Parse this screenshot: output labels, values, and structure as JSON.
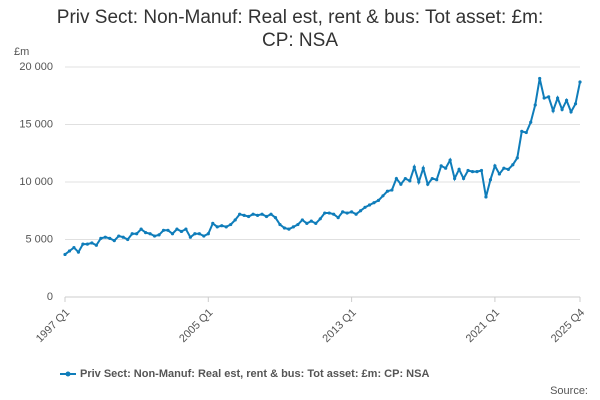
{
  "chart_data": {
    "type": "line",
    "title": "Priv Sect: Non-Manuf: Real est, rent & bus: Tot asset: £m: CP: NSA",
    "y_label": "£m",
    "source": "Source:",
    "categories": [
      "1997 Q1",
      null,
      null,
      null,
      null,
      null,
      null,
      null,
      null,
      null,
      null,
      null,
      null,
      null,
      null,
      null,
      null,
      null,
      null,
      null,
      null,
      null,
      null,
      null,
      null,
      null,
      null,
      null,
      null,
      null,
      null,
      null,
      "2005 Q1",
      null,
      null,
      null,
      null,
      null,
      null,
      null,
      null,
      null,
      null,
      null,
      null,
      null,
      null,
      null,
      null,
      null,
      null,
      null,
      null,
      null,
      null,
      null,
      null,
      null,
      null,
      null,
      null,
      null,
      null,
      null,
      "2013 Q1",
      null,
      null,
      null,
      null,
      null,
      null,
      null,
      null,
      null,
      null,
      null,
      null,
      null,
      null,
      null,
      null,
      null,
      null,
      null,
      null,
      null,
      null,
      null,
      null,
      null,
      null,
      null,
      null,
      null,
      null,
      null,
      "2021 Q1",
      null,
      null,
      null,
      null,
      null,
      null,
      null,
      null,
      null,
      null,
      null,
      null,
      null,
      null,
      null,
      null,
      null,
      null,
      "2025 Q4"
    ],
    "series": [
      {
        "name": "Priv Sect: Non-Manuf: Real est, rent & bus: Tot asset: £m: CP: NSA",
        "color": "#0f7dba",
        "values": [
          3700,
          4000,
          4300,
          3900,
          4600,
          4600,
          4700,
          4500,
          5100,
          5200,
          5100,
          4900,
          5300,
          5200,
          5000,
          5500,
          5500,
          5900,
          5600,
          5500,
          5300,
          5400,
          5800,
          5800,
          5500,
          5900,
          5700,
          5900,
          5200,
          5500,
          5500,
          5300,
          5500,
          6400,
          6100,
          6200,
          6100,
          6300,
          6700,
          7200,
          7100,
          7000,
          7200,
          7100,
          7200,
          7000,
          7200,
          6900,
          6300,
          6000,
          5900,
          6100,
          6300,
          6700,
          6400,
          6600,
          6400,
          6800,
          7300,
          7300,
          7200,
          6900,
          7400,
          7300,
          7400,
          7200,
          7500,
          7800,
          8000,
          8200,
          8400,
          8800,
          9200,
          9300,
          10300,
          9800,
          10300,
          10100,
          11300,
          10000,
          11200,
          9800,
          10300,
          10200,
          11400,
          11200,
          11900,
          10300,
          11100,
          10300,
          11000,
          10900,
          10900,
          11000,
          8700,
          10200,
          11400,
          10700,
          11200,
          11100,
          11500,
          12100,
          14400,
          14300,
          15200,
          16700,
          19000,
          17300,
          17400,
          16200,
          17300,
          16300,
          17100,
          16100,
          16800,
          18700
        ]
      }
    ],
    "ylim": [
      0,
      20000
    ],
    "yticks": [
      0,
      {
        "value": 5000,
        "label": "5 000"
      },
      {
        "value": 10000,
        "label": "10 000"
      },
      {
        "value": 15000,
        "label": "15 000"
      },
      {
        "value": 20000,
        "label": "20 000"
      }
    ],
    "grid": true
  }
}
